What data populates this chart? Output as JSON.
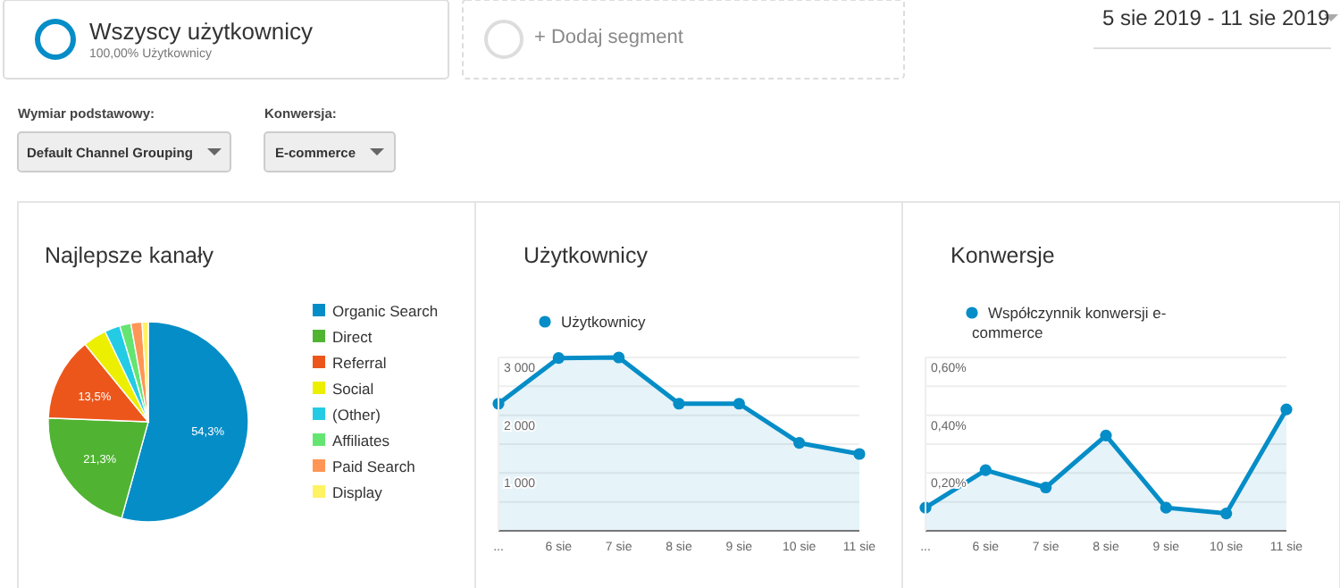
{
  "chart_data": [
    {
      "type": "other",
      "annotations": [
        "Wszyscy użytkownicy",
        "100,00% Użytkownicy",
        "+ Dodaj segment",
        "5 sie 2019 - 11 sie 2019",
        "Wymiar podstawowy:",
        "Default Channel Grouping",
        "Konwersja:",
        "E-commerce"
      ]
    },
    {
      "type": "pie",
      "title": "Najlepsze kanały",
      "legend": "right",
      "categories": [
        "Organic Search",
        "Direct",
        "Referral",
        "Social",
        "(Other)",
        "Affiliates",
        "Paid Search",
        "Display"
      ],
      "values": [
        54.3,
        21.3,
        13.5,
        3.8,
        2.5,
        1.8,
        1.8,
        1.0
      ],
      "colors": [
        "#058dc7",
        "#50b432",
        "#ed561b",
        "#edef00",
        "#24cbe5",
        "#64e572",
        "#ff9655",
        "#fff263"
      ],
      "value_labels": [
        "54,3%",
        "21,3%",
        "13,5%",
        null,
        null,
        null,
        null,
        null
      ]
    },
    {
      "type": "area",
      "title": "Użytkownicy",
      "legend": "top left",
      "grid": "y",
      "marker": "circle",
      "categories": [
        "...",
        "6 sie",
        "7 sie",
        "8 sie",
        "9 sie",
        "10 sie",
        "11 sie"
      ],
      "ylim": [
        0,
        3000
      ],
      "yticks": [
        {
          "value": 500,
          "label": null
        },
        {
          "value": 1000,
          "label": "1 000"
        },
        {
          "value": 1500,
          "label": null
        },
        {
          "value": 2000,
          "label": "2 000"
        },
        {
          "value": 2500,
          "label": null
        },
        {
          "value": 3000,
          "label": "3 000"
        }
      ],
      "series": [
        {
          "name": "Użytkownicy",
          "color": "#058dc7",
          "values": [
            2200,
            2990,
            3000,
            2200,
            2200,
            1520,
            1330
          ]
        }
      ]
    },
    {
      "type": "area",
      "title": "Konwersje",
      "legend": "top left",
      "grid": "y",
      "marker": "circle",
      "categories": [
        "...",
        "6 sie",
        "7 sie",
        "8 sie",
        "9 sie",
        "10 sie",
        "11 sie"
      ],
      "ylim": [
        0,
        0.6
      ],
      "yticks": [
        {
          "value": 0.1,
          "label": null
        },
        {
          "value": 0.2,
          "label": "0,20%"
        },
        {
          "value": 0.3,
          "label": null
        },
        {
          "value": 0.4,
          "label": "0,40%"
        },
        {
          "value": 0.5,
          "label": null
        },
        {
          "value": 0.6,
          "label": "0,60%"
        }
      ],
      "series": [
        {
          "name": "Współczynnik konwersji e-commerce",
          "color": "#058dc7",
          "values": [
            0.08,
            0.21,
            0.15,
            0.33,
            0.08,
            0.06,
            0.42
          ]
        }
      ]
    }
  ]
}
